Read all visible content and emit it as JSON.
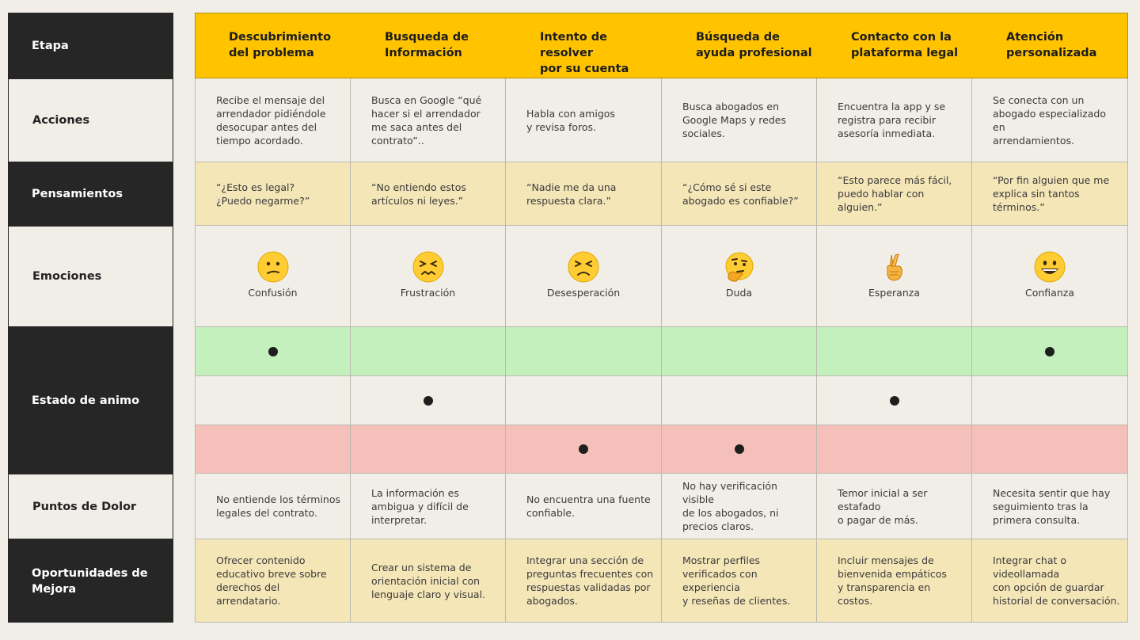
{
  "rows": {
    "etapa": "Etapa",
    "acciones": "Acciones",
    "pensamientos": "Pensamientos",
    "emociones": "Emociones",
    "estado": "Estado de animo",
    "dolor": "Puntos de Dolor",
    "oportunidades": "Oportunidades de\nMejora"
  },
  "stages": [
    {
      "title": "Descubrimiento\ndel problema",
      "accion": "Recibe el mensaje del\narrendador pidiéndole\ndesocupar antes del\ntiempo acordado.",
      "pensamiento": "“¿Esto es legal?\n¿Puedo negarme?”",
      "emocion": "Confusión",
      "emoji_icon": "confused-face-icon",
      "mood": "alto",
      "dolor": "No entiende los términos\nlegales del contrato.",
      "oportunidad": "Ofrecer contenido\neducativo breve sobre\nderechos del arrendatario."
    },
    {
      "title": "Busqueda de\nInformación",
      "accion": "Busca en Google “qué\nhacer si el arrendador\nme saca antes del\ncontrato”..",
      "pensamiento": "“No entiendo estos\nartículos ni leyes.”",
      "emocion": "Frustración",
      "emoji_icon": "confounded-face-icon",
      "mood": "medio",
      "dolor": "La información es\nambigua y difícil de\ninterpretar.",
      "oportunidad": "Crear un sistema de\norientación inicial con\nlenguaje claro y visual."
    },
    {
      "title": "Intento de resolver\npor su cuenta",
      "accion": "Habla con amigos\ny revisa foros.",
      "pensamiento": "“Nadie me da una\nrespuesta clara.”",
      "emocion": "Desesperación",
      "emoji_icon": "persevering-face-icon",
      "mood": "bajo",
      "dolor": "No encuentra una fuente\nconfiable.",
      "oportunidad": "Integrar una sección de\npreguntas frecuentes con\nrespuestas validadas por\nabogados."
    },
    {
      "title": "Búsqueda de\nayuda profesional",
      "accion": "Busca abogados en\nGoogle Maps y redes\nsociales.",
      "pensamiento": "“¿Cómo sé si este\nabogado es confiable?”",
      "emocion": "Duda",
      "emoji_icon": "thinking-face-icon",
      "mood": "bajo",
      "dolor": "No hay verificación visible\nde los abogados, ni\nprecios claros.",
      "oportunidad": "Mostrar perfiles\nverificados con experiencia\ny reseñas de clientes."
    },
    {
      "title": "Contacto con la\nplataforma legal",
      "accion": "Encuentra la app y se\nregistra para recibir\nasesoría inmediata.",
      "pensamiento": "“Esto parece más fácil,\npuedo hablar con alguien.”",
      "emocion": "Esperanza",
      "emoji_icon": "crossed-fingers-icon",
      "mood": "medio",
      "dolor": "Temor inicial a ser estafado\no pagar de más.",
      "oportunidad": "Incluir mensajes de\nbienvenida empáticos\ny transparencia en costos."
    },
    {
      "title": "Atención\npersonalizada",
      "accion": "Se conecta con un\nabogado especializado en\narrendamientos.",
      "pensamiento": "“Por fin alguien que me\nexplica sin tantos términos.”",
      "emocion": "Confianza",
      "emoji_icon": "grinning-face-icon",
      "mood": "alto",
      "dolor": "Necesita sentir que hay\nseguimiento tras la\nprimera consulta.",
      "oportunidad": "Integrar chat o videollamada\ncon opción de guardar\nhistorial de conversación."
    }
  ],
  "colors": {
    "header": "#ffc300",
    "dark": "#262626",
    "yellow_row": "#f5e6b8",
    "mood_high": "#c3f0bc",
    "mood_low": "#f5c0ba",
    "background": "#f1eee8"
  }
}
